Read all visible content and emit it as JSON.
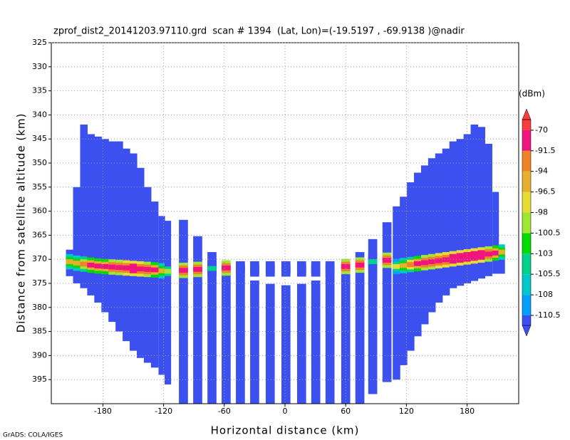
{
  "chart_data": {
    "type": "profile",
    "title": "zprof_dist2_20141203.97110.grd  scan # 1394  (Lat, Lon)=(-19.5197 , -69.9138 )@nadir",
    "x_label": "Horizontal distance (km)",
    "y_label": "Distance from satellite altitude (km)",
    "footer": "GrADS: COLA/IGES",
    "xlim": [
      -231,
      231
    ],
    "ylim": [
      325,
      400
    ],
    "y_inverted": true,
    "xticks": [
      -180,
      -120,
      -60,
      0,
      60,
      120,
      180
    ],
    "yticks": [
      325,
      330,
      335,
      340,
      345,
      350,
      355,
      360,
      365,
      370,
      375,
      380,
      385,
      390,
      395
    ],
    "grid": true,
    "columns": {
      "x": [
        -213,
        -206,
        -199,
        -192,
        -185,
        -178,
        -171,
        -164,
        -157,
        -150,
        -143,
        -136,
        -129,
        -122,
        -116,
        -100.6,
        -86.5,
        -72.4,
        -58.4,
        -44.3,
        -30.2,
        -14.8,
        0.7,
        16.2,
        30.2,
        44.3,
        59.8,
        73.8,
        86.5,
        100.6,
        110,
        117,
        124,
        131,
        138,
        145,
        152,
        159,
        166,
        173,
        180,
        187,
        194,
        201,
        208,
        214
      ],
      "top": [
        368,
        355,
        342,
        344,
        344.5,
        345,
        345.5,
        345.5,
        347,
        348,
        351,
        355,
        358,
        361,
        362,
        361.8,
        365.2,
        368.5,
        371.4,
        373.3,
        374.4,
        375.1,
        375.4,
        375.1,
        374.4,
        373.2,
        371.4,
        368.5,
        365.8,
        362.3,
        359,
        357,
        354,
        352,
        350.5,
        349,
        348,
        347,
        345.5,
        345,
        344,
        342,
        342.5,
        346,
        356,
        368
      ],
      "bottom": [
        373.5,
        375,
        376,
        377.5,
        379,
        381,
        383,
        385,
        387,
        389,
        390.5,
        391.5,
        392.5,
        394,
        396,
        400,
        400,
        400,
        400,
        400,
        400,
        400,
        400,
        400,
        400,
        400,
        400,
        400,
        398,
        395.5,
        395,
        392,
        389,
        386,
        383.5,
        381,
        379,
        377.5,
        376,
        375.5,
        375,
        374.5,
        374,
        373.5,
        373,
        373
      ],
      "surface": [
        370.5,
        370.8,
        371,
        371.2,
        371.4,
        371.5,
        371.6,
        371.7,
        371.8,
        371.9,
        372,
        372.1,
        372.2,
        372.4,
        372.5,
        372.3,
        372.1,
        371.9,
        371.8,
        372,
        372,
        372,
        372,
        372,
        372,
        372,
        371.5,
        371.2,
        370.5,
        370.2,
        371.5,
        371.3,
        371.1,
        370.9,
        370.7,
        370.5,
        370.3,
        370.1,
        369.9,
        369.7,
        369.5,
        369.3,
        369.1,
        368.9,
        368.7,
        368.5
      ],
      "peak": [
        -95,
        -96,
        -93,
        -90,
        -90,
        -89,
        -88,
        -87,
        -86,
        -85,
        -86,
        -88,
        -90,
        -95,
        -99,
        -88,
        -88,
        -105,
        -88,
        -112,
        -112,
        -112,
        -112,
        -112,
        -112,
        -112,
        -88,
        -88,
        -105,
        -88,
        -98,
        -95,
        -92,
        -90,
        -88,
        -87,
        -86,
        -86,
        -85,
        -85,
        -85,
        -85,
        -85,
        -87,
        -90,
        -96
      ]
    },
    "colorbar": {
      "unit": "(dBm)",
      "levels": [
        -110.5,
        -108,
        -105.5,
        -103,
        -100.5,
        -98,
        -96.5,
        -94,
        -91.5,
        -70
      ],
      "colors": [
        "#3c50f0",
        "#00a0ff",
        "#00c8c8",
        "#00d28c",
        "#00dc00",
        "#a0e632",
        "#e6dc32",
        "#e6af2d",
        "#f08228",
        "#f0147f",
        "#fa3c3c"
      ]
    }
  }
}
